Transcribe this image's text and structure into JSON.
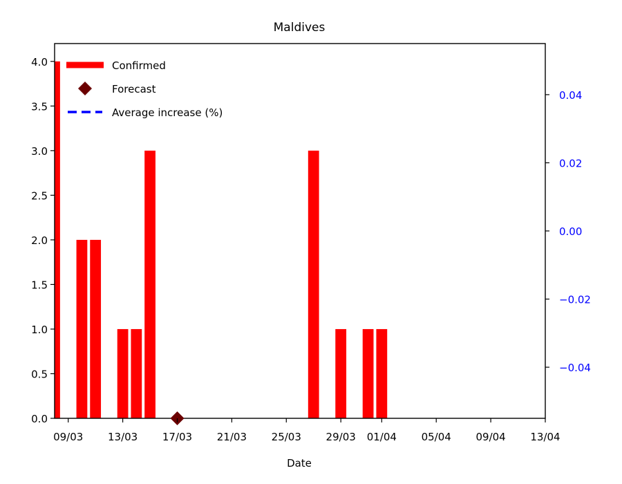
{
  "chart_data": {
    "type": "bar",
    "title": "Maldives",
    "xlabel": "Date",
    "ylabel": "",
    "ylim": [
      0,
      4.2
    ],
    "y2lim": [
      -0.055,
      0.055
    ],
    "xlim": [
      "08/03",
      "13/04"
    ],
    "x_tick_labels": [
      "09/03",
      "13/03",
      "17/03",
      "21/03",
      "25/03",
      "29/03",
      "01/04",
      "05/04",
      "09/04",
      "13/04"
    ],
    "y_tick_labels": [
      "0.0",
      "0.5",
      "1.0",
      "1.5",
      "2.0",
      "2.5",
      "3.0",
      "3.5",
      "4.0"
    ],
    "y2_tick_labels": [
      "−0.04",
      "−0.02",
      "0.00",
      "0.02",
      "0.04"
    ],
    "grid": false,
    "legend_position": "top-left",
    "legend": [
      {
        "label": "Confirmed",
        "marker": "bar",
        "color": "#ff0000"
      },
      {
        "label": "Forecast",
        "marker": "diamond",
        "color": "#6b0000"
      },
      {
        "label": "Average increase (%)",
        "marker": "dashed-line",
        "color": "#0000ff"
      }
    ],
    "series": [
      {
        "name": "Confirmed",
        "kind": "bar",
        "color": "#ff0000",
        "x": [
          "08/03",
          "10/03",
          "11/03",
          "13/03",
          "14/03",
          "15/03",
          "27/03",
          "29/03",
          "31/03",
          "01/04"
        ],
        "values": [
          4,
          2,
          2,
          1,
          1,
          3,
          3,
          1,
          1,
          1
        ]
      },
      {
        "name": "Forecast",
        "kind": "scatter",
        "color": "#6b0000",
        "x": [
          "17/03"
        ],
        "values": [
          0
        ]
      },
      {
        "name": "Average increase (%)",
        "kind": "line",
        "color": "#0000ff",
        "x": [],
        "values": []
      }
    ],
    "colors": {
      "right_axis": "#0000ff",
      "axis": "#000000"
    }
  }
}
